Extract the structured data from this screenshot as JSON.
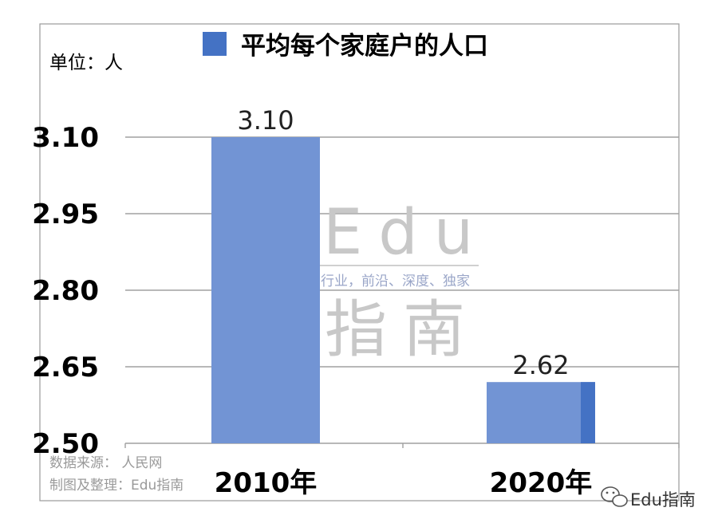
{
  "chart_data": {
    "type": "bar",
    "title": "平均每个家庭户的人口",
    "unit": "单位：人",
    "categories": [
      "2010年",
      "2020年"
    ],
    "series": [
      {
        "name": "平均每个家庭户的人口",
        "values": [
          3.1,
          2.62
        ]
      }
    ],
    "data_labels": [
      "3.10",
      "2.62"
    ],
    "ylim": [
      2.5,
      3.1
    ],
    "yticks": [
      "3.10",
      "2.95",
      "2.80",
      "2.65",
      "2.50"
    ],
    "grid": true,
    "legend": "top",
    "bar_color": "#7294d4",
    "legend_color": "#4472c4"
  },
  "source": {
    "line1": "数据来源： 人民网",
    "line2": "制图及整理：Edu指南"
  },
  "watermark": {
    "word1": "Edu",
    "tagline": "教育行业，前沿、深度、独家",
    "word2": "指南"
  },
  "brand": {
    "name": "Edu指南",
    "icon": "wechat-icon"
  }
}
